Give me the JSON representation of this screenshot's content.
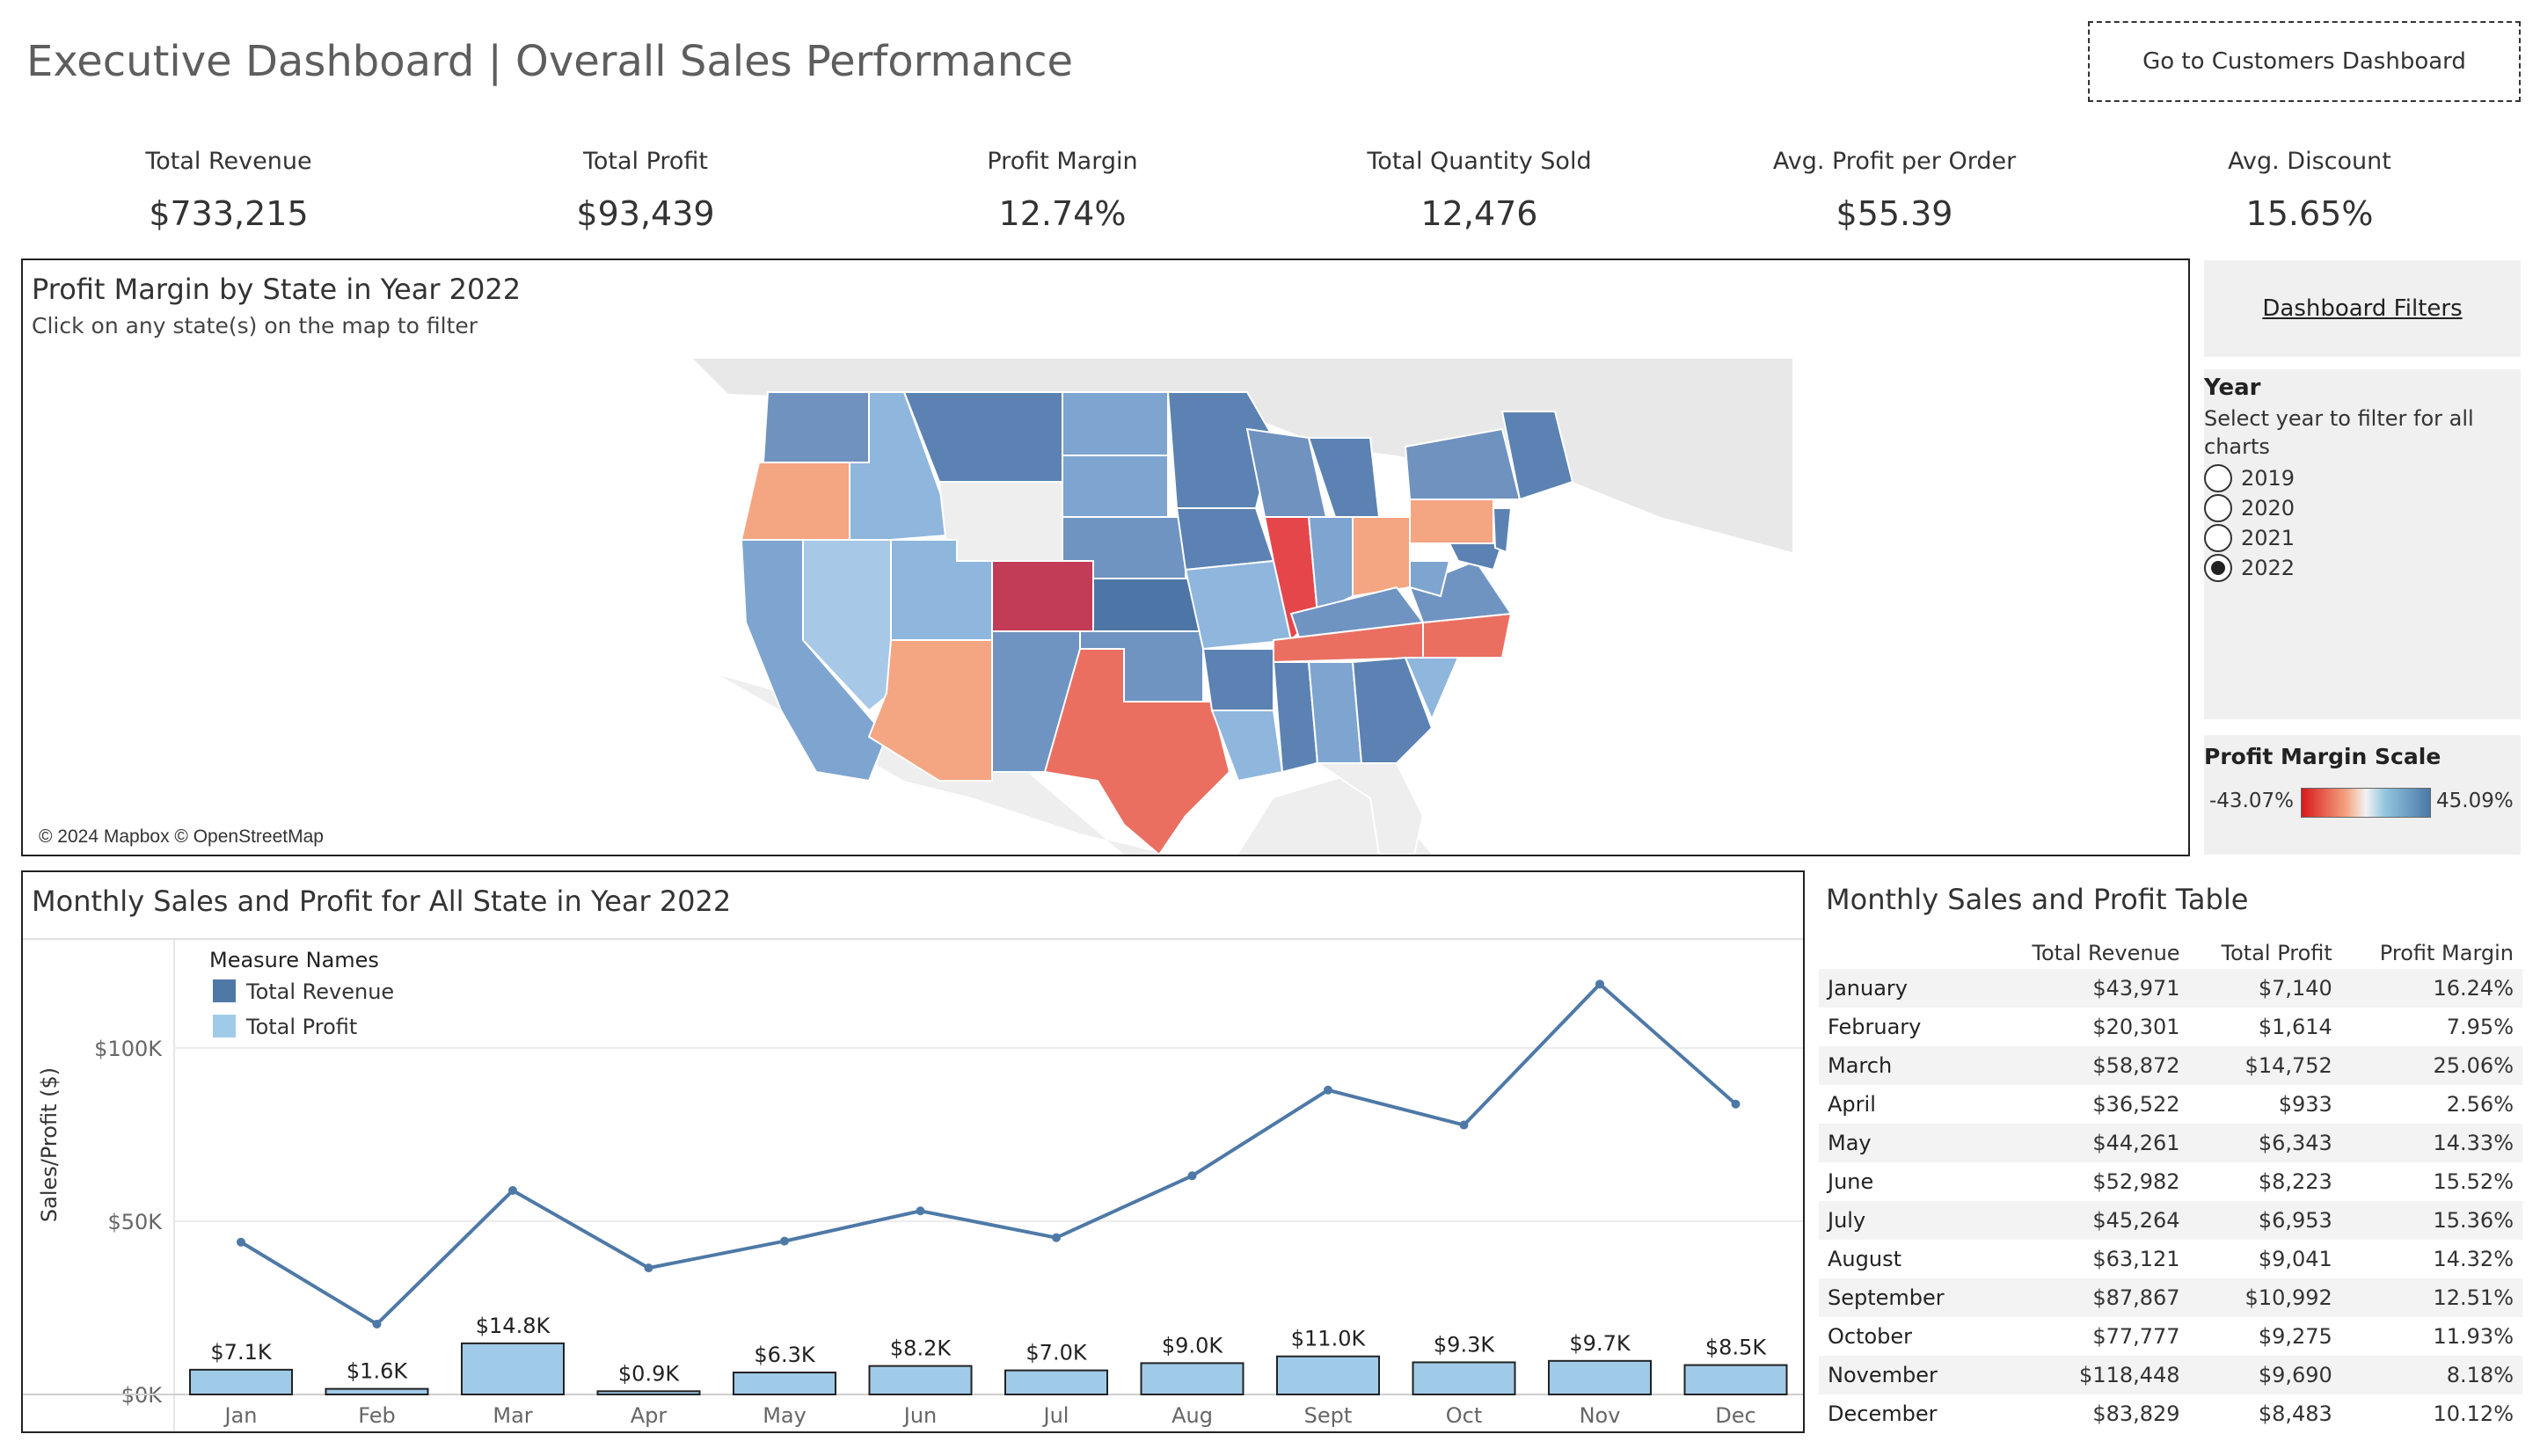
{
  "header": {
    "title": "Executive Dashboard | Overall Sales Performance",
    "nav_button": "Go to Customers Dashboard"
  },
  "kpis": [
    {
      "label": "Total Revenue",
      "value": "$733,215"
    },
    {
      "label": "Total Profit",
      "value": "$93,439"
    },
    {
      "label": "Profit Margin",
      "value": "12.74%"
    },
    {
      "label": "Total Quantity Sold",
      "value": "12,476"
    },
    {
      "label": "Avg. Profit per Order",
      "value": "$55.39"
    },
    {
      "label": "Avg. Discount",
      "value": "15.65%"
    }
  ],
  "map": {
    "title": "Profit Margin by State in Year 2022",
    "subtitle": "Click on any state(s) on the map to filter",
    "credit": "© 2024 Mapbox © OpenStreetMap"
  },
  "filters": {
    "link": "Dashboard Filters",
    "year_title": "Year",
    "year_help": "Select year to filter for all charts",
    "years": [
      {
        "label": "2019",
        "selected": false
      },
      {
        "label": "2020",
        "selected": false
      },
      {
        "label": "2021",
        "selected": false
      },
      {
        "label": "2022",
        "selected": true
      }
    ],
    "scale_title": "Profit Margin Scale",
    "scale_min": "-43.07%",
    "scale_max": "45.09%",
    "scale_colors": {
      "negative": "#d7191c",
      "neutral": "#f2f2f2",
      "positive": "#4a78a8"
    }
  },
  "line_chart": {
    "title": "Monthly Sales and Profit for All State in Year 2022",
    "legend_title": "Measure Names",
    "colors": {
      "revenue": "#4e79a7",
      "profit": "#a0cbe8"
    }
  },
  "chart_data": {
    "type": "bar",
    "title": "Monthly Sales and Profit for All State in Year 2022",
    "xlabel": "",
    "ylabel": "Sales/Profit ($)",
    "ylim": [
      0,
      130000
    ],
    "yticks": [
      {
        "value": 0,
        "label": "$0K"
      },
      {
        "value": 50000,
        "label": "$50K"
      },
      {
        "value": 100000,
        "label": "$100K"
      }
    ],
    "grid": true,
    "legend_position": "top-left",
    "categories": [
      "Jan",
      "Feb",
      "Mar",
      "Apr",
      "May",
      "Jun",
      "Jul",
      "Aug",
      "Sept",
      "Oct",
      "Nov",
      "Dec"
    ],
    "series": [
      {
        "name": "Total Revenue",
        "type": "line",
        "values": [
          43971,
          20301,
          58872,
          36522,
          44261,
          52982,
          45264,
          63121,
          87867,
          77777,
          118448,
          83829
        ]
      },
      {
        "name": "Total Profit",
        "type": "bar",
        "values": [
          7140,
          1614,
          14752,
          933,
          6343,
          8223,
          6953,
          9041,
          10992,
          9275,
          9690,
          8483
        ],
        "labels": [
          "$7.1K",
          "$1.6K",
          "$14.8K",
          "$0.9K",
          "$6.3K",
          "$8.2K",
          "$7.0K",
          "$9.0K",
          "$11.0K",
          "$9.3K",
          "$9.7K",
          "$8.5K"
        ]
      }
    ]
  },
  "table": {
    "title": "Monthly Sales and Profit Table",
    "columns": [
      "",
      "Total Revenue",
      "Total Profit",
      "Profit Margin"
    ],
    "rows": [
      [
        "January",
        "$43,971",
        "$7,140",
        "16.24%"
      ],
      [
        "February",
        "$20,301",
        "$1,614",
        "7.95%"
      ],
      [
        "March",
        "$58,872",
        "$14,752",
        "25.06%"
      ],
      [
        "April",
        "$36,522",
        "$933",
        "2.56%"
      ],
      [
        "May",
        "$44,261",
        "$6,343",
        "14.33%"
      ],
      [
        "June",
        "$52,982",
        "$8,223",
        "15.52%"
      ],
      [
        "July",
        "$45,264",
        "$6,953",
        "15.36%"
      ],
      [
        "August",
        "$63,121",
        "$9,041",
        "14.32%"
      ],
      [
        "September",
        "$87,867",
        "$10,992",
        "12.51%"
      ],
      [
        "October",
        "$77,777",
        "$9,275",
        "11.93%"
      ],
      [
        "November",
        "$118,448",
        "$9,690",
        "8.18%"
      ],
      [
        "December",
        "$83,829",
        "$8,483",
        "10.12%"
      ]
    ]
  }
}
